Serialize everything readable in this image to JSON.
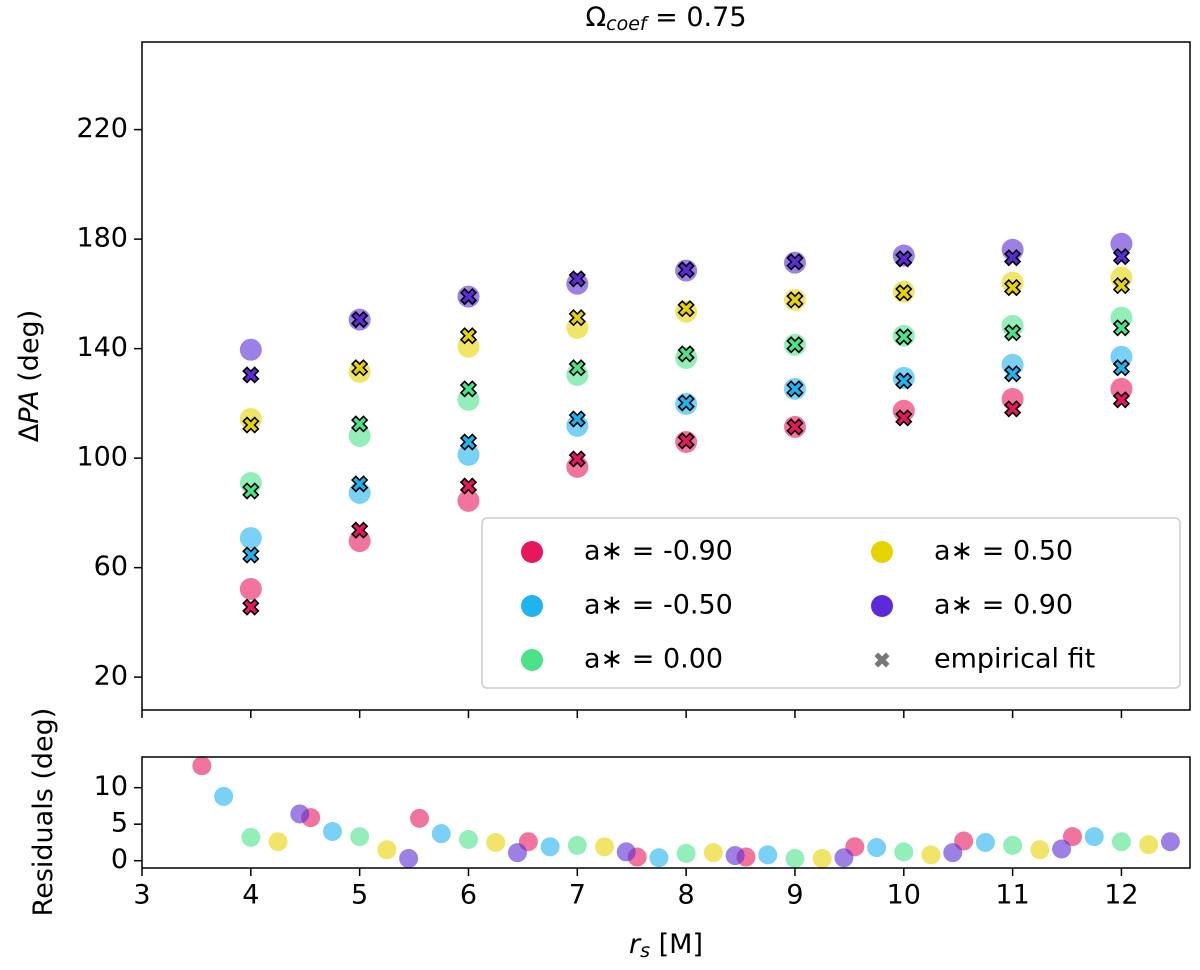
{
  "chart_data": [
    {
      "type": "scatter",
      "title": [
        "Ω",
        "coef",
        " = 0.75"
      ],
      "ylabel": [
        "Δ",
        "PA",
        " (deg)"
      ],
      "x": [
        4,
        5,
        6,
        7,
        8,
        9,
        10,
        11,
        12
      ],
      "xlim": [
        3,
        12.63
      ],
      "xticks": [
        3,
        4,
        5,
        6,
        7,
        8,
        9,
        10,
        11,
        12
      ],
      "ylim": [
        8,
        252
      ],
      "yticks": [
        20,
        60,
        100,
        140,
        180,
        220
      ],
      "legend": "lower right",
      "fit_name": "empirical fit",
      "fit_color": "#777777",
      "series": [
        {
          "name": "a∗ = -0.90",
          "color": "#e8175d",
          "values": [
            52.2,
            69.7,
            84.4,
            96.8,
            105.9,
            111.4,
            117.3,
            121.6,
            125.3
          ],
          "fit": [
            45.6,
            73.7,
            89.8,
            99.7,
            106.3,
            111.4,
            114.7,
            118,
            121.3
          ]
        },
        {
          "name": "a∗ = -0.50",
          "color": "#1fb3f0",
          "values": [
            70.8,
            87.3,
            101.2,
            111.8,
            119.8,
            125.3,
            129.3,
            134.1,
            137
          ],
          "fit": [
            64.6,
            90.6,
            105.9,
            114.3,
            120.2,
            125.3,
            128.2,
            130.8,
            133
          ]
        },
        {
          "name": "a∗ = 0.00",
          "color": "#4be38a",
          "values": [
            90.9,
            108.1,
            121.3,
            130.4,
            136.6,
            141.4,
            144.7,
            148.3,
            151.3
          ],
          "fit": [
            88,
            112.5,
            125.3,
            133,
            138.1,
            141.4,
            144.3,
            145.8,
            147.6
          ]
        },
        {
          "name": "a∗ = 0.50",
          "color": "#e6d400",
          "values": [
            114.3,
            131.5,
            140.7,
            147.6,
            153.5,
            157.8,
            160.8,
            164.1,
            165.9
          ],
          "fit": [
            112.1,
            133,
            144.7,
            151.3,
            154.6,
            157.8,
            160.4,
            162.3,
            163
          ]
        },
        {
          "name": "a∗ = 0.90",
          "color": "#5a2bd6",
          "values": [
            139.6,
            150.6,
            159,
            163.7,
            168.5,
            171.4,
            174,
            176.1,
            178.3
          ],
          "fit": [
            130.4,
            150.6,
            159,
            165.5,
            168.8,
            171.7,
            172.8,
            173.2,
            173.6
          ]
        }
      ]
    },
    {
      "type": "scatter",
      "xlabel": [
        "r",
        "s",
        " [M]"
      ],
      "ylabel": [
        "Residuals (deg)"
      ],
      "xlim": [
        3,
        12.63
      ],
      "xticks": [
        3,
        4,
        5,
        6,
        7,
        8,
        9,
        10,
        11,
        12
      ],
      "ylim": [
        -1,
        14.2
      ],
      "yticks": [
        0,
        5,
        10
      ],
      "series": [
        {
          "color": "#e8175d",
          "x": [
            3.55,
            4.55,
            5.55,
            6.55,
            7.55,
            8.55,
            9.55,
            10.55,
            11.55
          ],
          "values": [
            13,
            5.9,
            5.8,
            2.6,
            0.5,
            0.5,
            1.9,
            2.7,
            3.3
          ]
        },
        {
          "color": "#1fb3f0",
          "x": [
            3.75,
            4.75,
            5.75,
            6.75,
            7.75,
            8.75,
            9.75,
            10.75,
            11.75
          ],
          "values": [
            8.8,
            4.0,
            3.7,
            1.9,
            0.4,
            0.8,
            1.8,
            2.5,
            3.3
          ]
        },
        {
          "color": "#4be38a",
          "x": [
            4,
            5,
            6,
            7,
            8,
            9,
            10,
            11,
            12
          ],
          "values": [
            3.2,
            3.3,
            2.9,
            2.1,
            1.0,
            0.3,
            1.2,
            2.1,
            2.6
          ]
        },
        {
          "color": "#e6d400",
          "x": [
            4.25,
            5.25,
            6.25,
            7.25,
            8.25,
            9.25,
            10.25,
            11.25,
            12.25
          ],
          "values": [
            2.6,
            1.5,
            2.5,
            1.9,
            1.1,
            0.3,
            0.8,
            1.5,
            2.2
          ]
        },
        {
          "color": "#5a2bd6",
          "x": [
            4.45,
            5.45,
            6.45,
            7.45,
            8.45,
            9.45,
            10.45,
            11.45,
            12.45
          ],
          "values": [
            6.4,
            0.3,
            1.1,
            1.2,
            0.7,
            0.4,
            1.1,
            1.6,
            2.6
          ]
        }
      ]
    }
  ]
}
